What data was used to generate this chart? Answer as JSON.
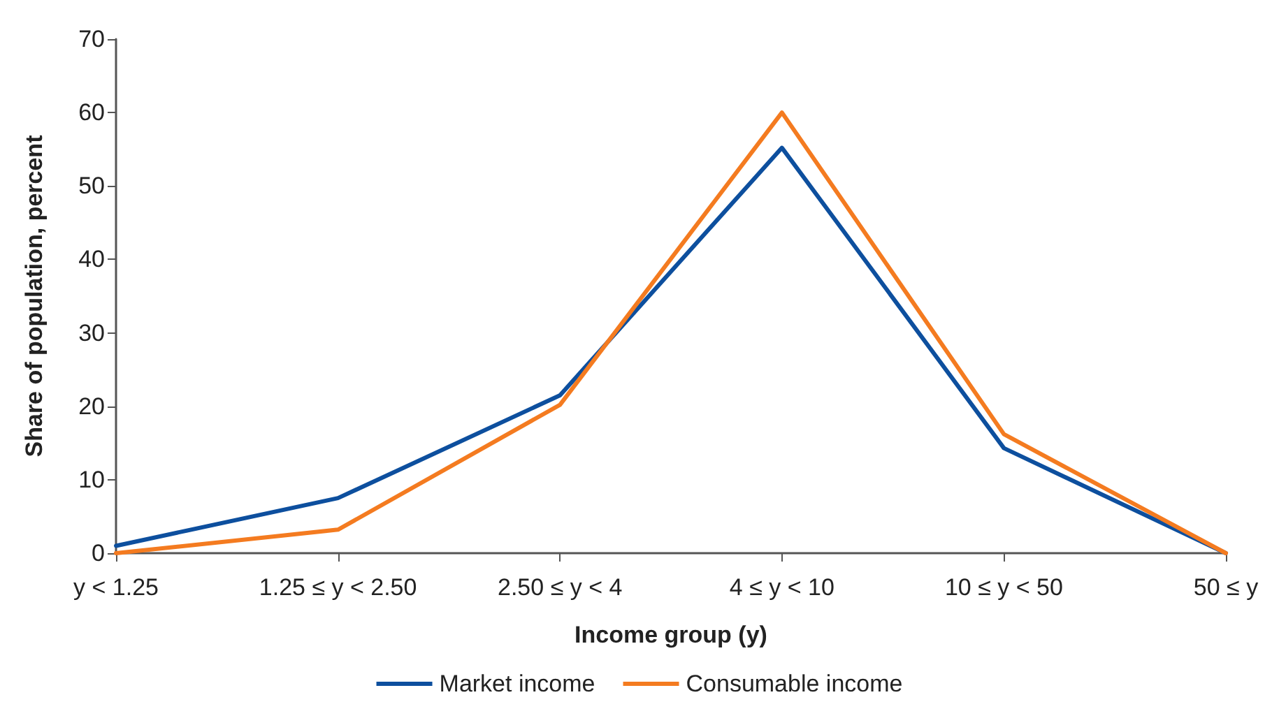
{
  "chart_data": {
    "type": "line",
    "xlabel": "Income group (y)",
    "ylabel": "Share of population, percent",
    "categories": [
      "y < 1.25",
      "1.25 ≤ y < 2.50",
      "2.50 ≤ y < 4",
      "4 ≤ y < 10",
      "10 ≤ y < 50",
      "50 ≤ y"
    ],
    "series": [
      {
        "name": "Market income",
        "color": "#0d4f9e",
        "values": [
          1,
          7.5,
          21.5,
          55.2,
          14.3,
          0
        ]
      },
      {
        "name": "Consumable income",
        "color": "#f47b20",
        "values": [
          0,
          3.2,
          20.2,
          60,
          16.2,
          0
        ]
      }
    ],
    "ylim": [
      0,
      70
    ],
    "yticks": [
      0,
      10,
      20,
      30,
      40,
      50,
      60,
      70
    ],
    "grid": false,
    "legend": "bottom",
    "marker": "none",
    "line_style": "solid"
  }
}
